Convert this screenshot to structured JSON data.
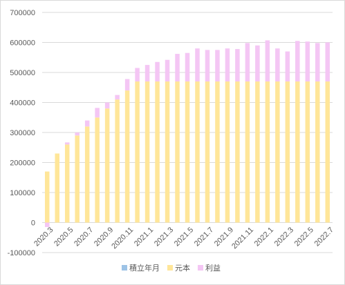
{
  "chart_data": {
    "type": "bar",
    "stacked": true,
    "categories": [
      "2020.3",
      "2020.4",
      "2020.5",
      "2020.6",
      "2020.7",
      "2020.8",
      "2020.9",
      "2020.10",
      "2020.11",
      "2020.12",
      "2021.1",
      "2021.2",
      "2021.3",
      "2021.4",
      "2021.5",
      "2021.6",
      "2021.7",
      "2021.8",
      "2021.9",
      "2021.10",
      "2021.11",
      "2021.12",
      "2022.1",
      "2022.2",
      "2022.3",
      "2022.4",
      "2022.5",
      "2022.6",
      "2022.7"
    ],
    "x_tick_labels": [
      "2020.3",
      "2020.5",
      "2020.7",
      "2020.9",
      "2020.11",
      "2021.1",
      "2021.3",
      "2021.5",
      "2021.7",
      "2021.9",
      "2021.11",
      "2022.1",
      "2022.3",
      "2022.5",
      "2022.7"
    ],
    "series": [
      {
        "name": "積立年月",
        "color": "#9dc3e6",
        "values": [
          0,
          0,
          0,
          0,
          0,
          0,
          0,
          0,
          0,
          0,
          0,
          0,
          0,
          0,
          0,
          0,
          0,
          0,
          0,
          0,
          0,
          0,
          0,
          0,
          0,
          0,
          0,
          0,
          0
        ]
      },
      {
        "name": "元本",
        "color": "#ffe699",
        "values": [
          170000,
          230000,
          260000,
          290000,
          320000,
          350000,
          380000,
          410000,
          440000,
          470000,
          470000,
          470000,
          470000,
          470000,
          470000,
          470000,
          470000,
          470000,
          470000,
          470000,
          470000,
          470000,
          470000,
          470000,
          470000,
          470000,
          470000,
          470000,
          470000
        ]
      },
      {
        "name": "利益",
        "color": "#f4c6f4",
        "values": [
          -15000,
          0,
          7000,
          10000,
          20000,
          32000,
          20000,
          15000,
          38000,
          45000,
          55000,
          65000,
          72000,
          92000,
          95000,
          110000,
          105000,
          105000,
          110000,
          108000,
          128000,
          120000,
          137000,
          110000,
          100000,
          135000,
          133000,
          128000,
          130000
        ]
      }
    ],
    "ylim": [
      -100000,
      700000
    ],
    "yticks": [
      -100000,
      0,
      100000,
      200000,
      300000,
      400000,
      500000,
      600000,
      700000
    ],
    "grid": true,
    "legend": "bottom",
    "title": "",
    "xlabel": "",
    "ylabel": ""
  }
}
